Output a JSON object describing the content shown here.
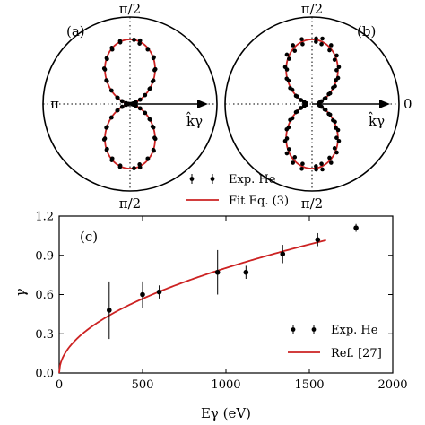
{
  "colors": {
    "fit": "#cc2222",
    "data": "#000000",
    "guide": "#000000"
  },
  "polar": [
    {
      "panel": "(a)",
      "top_label": "π/2",
      "bottom_label": "π/2",
      "left_label": "π",
      "right_label": "",
      "vector_label": "k̂γ",
      "fit_beta": 1.9,
      "points": [
        [
          0.48,
          1.0
        ],
        [
          0.45,
          0.97
        ],
        [
          0.4,
          0.99
        ],
        [
          0.35,
          1.02
        ],
        [
          0.3,
          0.98
        ],
        [
          0.25,
          1.01
        ],
        [
          0.21,
          0.99
        ],
        [
          0.17,
          1.0
        ],
        [
          0.13,
          0.98
        ],
        [
          0.09,
          1.02
        ],
        [
          0.06,
          0.97
        ],
        [
          0.035,
          1.0
        ],
        [
          0.55,
          1.01
        ],
        [
          0.6,
          0.98
        ],
        [
          0.65,
          1.0
        ],
        [
          0.7,
          1.03
        ],
        [
          0.75,
          0.99
        ],
        [
          0.8,
          1.0
        ],
        [
          0.85,
          0.97
        ],
        [
          0.89,
          1.01
        ],
        [
          0.93,
          0.99
        ],
        [
          0.965,
          1.02
        ],
        [
          -0.48,
          1.0
        ],
        [
          -0.45,
          1.02
        ],
        [
          -0.4,
          0.98
        ],
        [
          -0.35,
          1.0
        ],
        [
          -0.3,
          1.01
        ],
        [
          -0.25,
          0.97
        ],
        [
          -0.21,
          1.02
        ],
        [
          -0.17,
          0.99
        ],
        [
          -0.13,
          1.0
        ],
        [
          -0.09,
          0.98
        ],
        [
          -0.06,
          1.01
        ],
        [
          -0.55,
          0.99
        ],
        [
          -0.6,
          1.01
        ],
        [
          -0.65,
          0.98
        ],
        [
          -0.7,
          1.0
        ],
        [
          -0.75,
          1.02
        ],
        [
          -0.8,
          0.99
        ],
        [
          -0.85,
          1.01
        ],
        [
          -0.89,
          0.98
        ],
        [
          -0.93,
          1.0
        ],
        [
          -0.965,
          0.99
        ]
      ]
    },
    {
      "panel": "(b)",
      "top_label": "π/2",
      "bottom_label": "π/2",
      "left_label": "",
      "right_label": "0",
      "vector_label": "k̂γ",
      "fit_beta": 1.6,
      "points": [
        [
          0.48,
          1.02
        ],
        [
          0.45,
          0.96
        ],
        [
          0.4,
          1.05
        ],
        [
          0.35,
          0.95
        ],
        [
          0.3,
          1.04
        ],
        [
          0.25,
          0.97
        ],
        [
          0.21,
          1.06
        ],
        [
          0.17,
          0.95
        ],
        [
          0.13,
          1.03
        ],
        [
          0.09,
          0.96
        ],
        [
          0.06,
          1.05
        ],
        [
          0.55,
          1.04
        ],
        [
          0.6,
          0.95
        ],
        [
          0.65,
          1.06
        ],
        [
          0.7,
          0.97
        ],
        [
          0.75,
          1.03
        ],
        [
          0.8,
          0.95
        ],
        [
          0.85,
          1.05
        ],
        [
          0.89,
          0.98
        ],
        [
          0.93,
          1.04
        ],
        [
          0.965,
          1.0
        ],
        [
          -0.48,
          0.97
        ],
        [
          -0.45,
          1.05
        ],
        [
          -0.4,
          0.96
        ],
        [
          -0.35,
          1.04
        ],
        [
          -0.3,
          0.95
        ],
        [
          -0.25,
          1.06
        ],
        [
          -0.21,
          0.97
        ],
        [
          -0.17,
          1.03
        ],
        [
          -0.13,
          0.95
        ],
        [
          -0.09,
          1.04
        ],
        [
          -0.55,
          0.96
        ],
        [
          -0.6,
          1.05
        ],
        [
          -0.65,
          0.97
        ],
        [
          -0.7,
          1.04
        ],
        [
          -0.75,
          0.95
        ],
        [
          -0.8,
          1.06
        ],
        [
          -0.85,
          0.96
        ],
        [
          -0.89,
          1.03
        ],
        [
          -0.93,
          0.97
        ],
        [
          -0.965,
          1.02
        ]
      ]
    }
  ],
  "legend_top": {
    "data_label": "Exp. He",
    "fit_label": "Fit Eq. (3)"
  },
  "chart_data": {
    "type": "scatter",
    "panel": "(c)",
    "xlabel": "Eγ (eV)",
    "ylabel": "γ",
    "xlim": [
      0,
      2000
    ],
    "ylim": [
      0.0,
      1.2
    ],
    "xticks": [
      0,
      500,
      1000,
      1500,
      2000
    ],
    "yticks": [
      0.0,
      0.3,
      0.6,
      0.9,
      1.2
    ],
    "x_tick_labels": [
      "0",
      "500",
      "1000",
      "1500",
      "2000"
    ],
    "y_tick_labels": [
      "0.0",
      "0.3",
      "0.6",
      "0.9",
      "1.2"
    ],
    "series": [
      {
        "name": "Exp. He",
        "x": [
          300,
          500,
          600,
          950,
          1120,
          1340,
          1550,
          1780
        ],
        "y": [
          0.48,
          0.6,
          0.62,
          0.77,
          0.77,
          0.91,
          1.02,
          1.11
        ],
        "yerr": [
          0.22,
          0.1,
          0.05,
          0.17,
          0.05,
          0.07,
          0.05,
          0.03
        ]
      },
      {
        "name": "Ref. [27]",
        "model": "0.0254 * x^0.5",
        "x_range": [
          0,
          1600
        ]
      }
    ],
    "legend_position": "bottom-right",
    "grid": false
  }
}
